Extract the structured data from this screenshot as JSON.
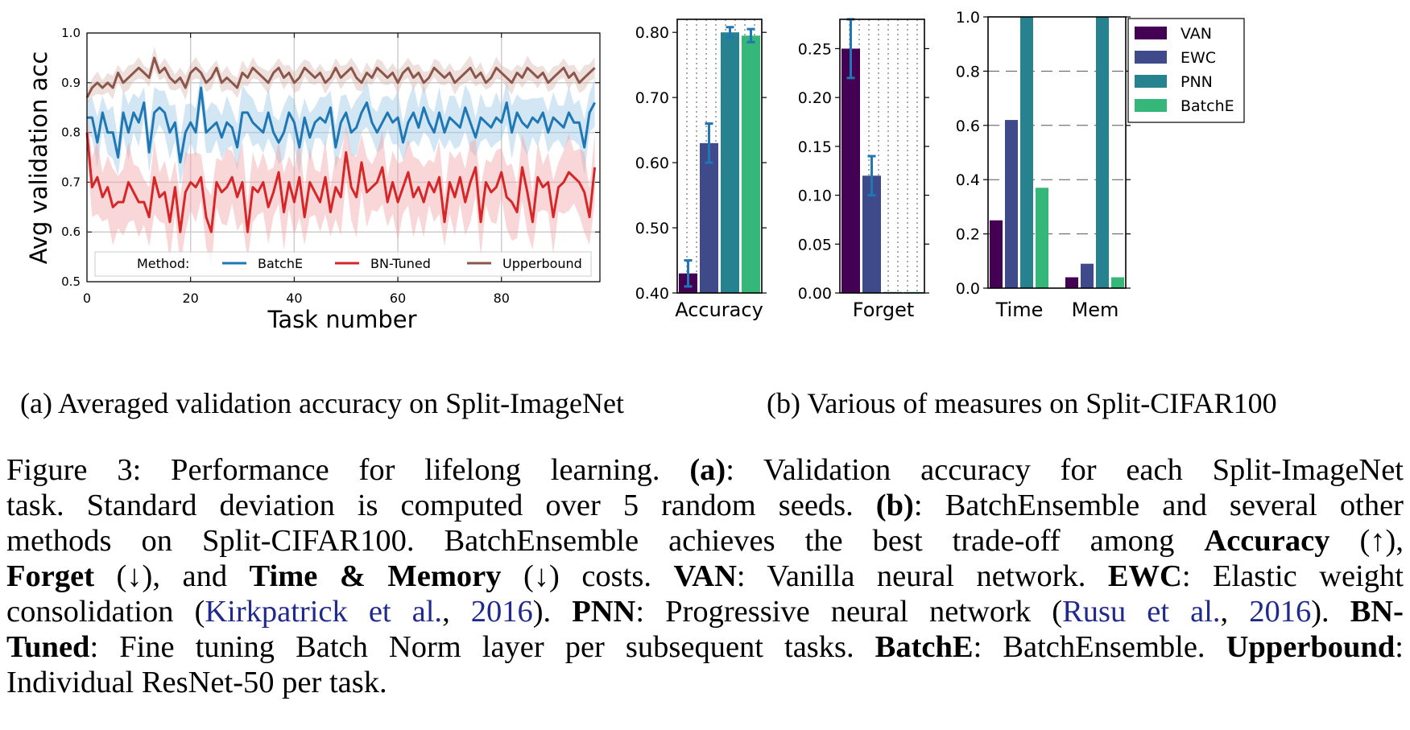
{
  "figure": {
    "sub_a_caption": "(a) Averaged validation accuracy on Split-ImageNet",
    "sub_b_caption": "(b) Various of measures on Split-CIFAR100"
  },
  "chart_data": [
    {
      "type": "line",
      "id": "a",
      "title": "",
      "xlabel": "Task number",
      "ylabel": "Avg validation acc",
      "xlim": [
        0,
        99
      ],
      "ylim": [
        0.5,
        1.0
      ],
      "xticks": [
        "0",
        "20",
        "40",
        "60",
        "80"
      ],
      "yticks": [
        "0.5",
        "0.6",
        "0.7",
        "0.8",
        "0.9",
        "1.0"
      ],
      "grid": true,
      "legend_title": "Method:",
      "legend_position": "bottom",
      "series": [
        {
          "name": "BatchE",
          "color": "#1f77b4",
          "values": [
            0.83,
            0.83,
            0.78,
            0.84,
            0.8,
            0.8,
            0.75,
            0.84,
            0.8,
            0.84,
            0.82,
            0.86,
            0.76,
            0.84,
            0.85,
            0.84,
            0.8,
            0.82,
            0.74,
            0.8,
            0.82,
            0.8,
            0.89,
            0.8,
            0.81,
            0.82,
            0.79,
            0.82,
            0.81,
            0.77,
            0.84,
            0.84,
            0.82,
            0.81,
            0.8,
            0.84,
            0.8,
            0.78,
            0.8,
            0.84,
            0.82,
            0.77,
            0.83,
            0.79,
            0.82,
            0.83,
            0.82,
            0.85,
            0.77,
            0.82,
            0.84,
            0.8,
            0.81,
            0.84,
            0.86,
            0.82,
            0.8,
            0.82,
            0.84,
            0.82,
            0.83,
            0.78,
            0.82,
            0.84,
            0.81,
            0.85,
            0.82,
            0.8,
            0.84,
            0.8,
            0.83,
            0.82,
            0.81,
            0.85,
            0.82,
            0.79,
            0.83,
            0.82,
            0.81,
            0.83,
            0.82,
            0.86,
            0.8,
            0.84,
            0.82,
            0.81,
            0.83,
            0.82,
            0.84,
            0.8,
            0.83,
            0.82,
            0.81,
            0.84,
            0.82,
            0.82,
            0.77,
            0.84,
            0.86
          ]
        },
        {
          "name": "BN-Tuned",
          "color": "#d62728",
          "values": [
            0.8,
            0.69,
            0.71,
            0.67,
            0.69,
            0.65,
            0.66,
            0.66,
            0.7,
            0.68,
            0.66,
            0.66,
            0.63,
            0.71,
            0.67,
            0.68,
            0.62,
            0.69,
            0.6,
            0.68,
            0.7,
            0.69,
            0.71,
            0.63,
            0.6,
            0.7,
            0.68,
            0.69,
            0.71,
            0.67,
            0.7,
            0.6,
            0.69,
            0.68,
            0.7,
            0.65,
            0.68,
            0.72,
            0.64,
            0.7,
            0.66,
            0.71,
            0.63,
            0.7,
            0.68,
            0.66,
            0.71,
            0.64,
            0.69,
            0.67,
            0.76,
            0.69,
            0.67,
            0.74,
            0.68,
            0.69,
            0.7,
            0.73,
            0.66,
            0.7,
            0.66,
            0.69,
            0.72,
            0.67,
            0.69,
            0.66,
            0.7,
            0.68,
            0.71,
            0.62,
            0.7,
            0.67,
            0.71,
            0.66,
            0.7,
            0.73,
            0.62,
            0.7,
            0.68,
            0.69,
            0.72,
            0.67,
            0.66,
            0.64,
            0.73,
            0.68,
            0.62,
            0.71,
            0.69,
            0.7,
            0.63,
            0.69,
            0.7,
            0.72,
            0.71,
            0.7,
            0.68,
            0.63,
            0.73
          ]
        },
        {
          "name": "Upperbound",
          "color": "#8c564b",
          "values": [
            0.87,
            0.89,
            0.9,
            0.89,
            0.9,
            0.89,
            0.92,
            0.9,
            0.91,
            0.92,
            0.93,
            0.92,
            0.91,
            0.95,
            0.92,
            0.93,
            0.91,
            0.9,
            0.91,
            0.89,
            0.92,
            0.93,
            0.92,
            0.9,
            0.91,
            0.93,
            0.9,
            0.91,
            0.9,
            0.89,
            0.92,
            0.91,
            0.93,
            0.92,
            0.91,
            0.9,
            0.92,
            0.93,
            0.91,
            0.92,
            0.9,
            0.91,
            0.93,
            0.92,
            0.91,
            0.92,
            0.9,
            0.91,
            0.93,
            0.91,
            0.92,
            0.93,
            0.91,
            0.9,
            0.92,
            0.91,
            0.93,
            0.92,
            0.91,
            0.92,
            0.9,
            0.92,
            0.93,
            0.91,
            0.92,
            0.9,
            0.91,
            0.93,
            0.92,
            0.91,
            0.92,
            0.9,
            0.91,
            0.92,
            0.93,
            0.91,
            0.92,
            0.9,
            0.91,
            0.93,
            0.92,
            0.91,
            0.9,
            0.92,
            0.91,
            0.93,
            0.92,
            0.91,
            0.92,
            0.9,
            0.91,
            0.92,
            0.93,
            0.91,
            0.92,
            0.9,
            0.91,
            0.92,
            0.93
          ]
        }
      ],
      "bands": {
        "BatchE": 0.045,
        "BN-Tuned": 0.065,
        "Upperbound": 0.02
      }
    },
    {
      "type": "bar",
      "id": "b-accuracy",
      "category_label": "Accuracy",
      "ylim": [
        0.4,
        0.82
      ],
      "yticks": [
        "0.40",
        "0.50",
        "0.60",
        "0.70",
        "0.80"
      ],
      "series": [
        {
          "name": "VAN",
          "value": 0.43,
          "err": 0.02
        },
        {
          "name": "EWC",
          "value": 0.63,
          "err": 0.03
        },
        {
          "name": "PNN",
          "value": 0.8,
          "err": 0.008
        },
        {
          "name": "BatchE",
          "value": 0.795,
          "err": 0.01
        }
      ]
    },
    {
      "type": "bar",
      "id": "b-forget",
      "category_label": "Forget",
      "ylim": [
        0.0,
        0.28
      ],
      "yticks": [
        "0.00",
        "0.05",
        "0.10",
        "0.15",
        "0.20",
        "0.25"
      ],
      "series": [
        {
          "name": "VAN",
          "value": 0.25,
          "err": 0.03
        },
        {
          "name": "EWC",
          "value": 0.12,
          "err": 0.02
        },
        {
          "name": "PNN",
          "value": 0.001,
          "err": 0
        },
        {
          "name": "BatchE",
          "value": 0.001,
          "err": 0
        }
      ]
    },
    {
      "type": "bar",
      "id": "b-cost",
      "categories": [
        "Time",
        "Mem"
      ],
      "ylim": [
        0.0,
        1.0
      ],
      "yticks": [
        "0.0",
        "0.2",
        "0.4",
        "0.6",
        "0.8",
        "1.0"
      ],
      "series": [
        {
          "name": "VAN",
          "values": [
            0.25,
            0.04
          ]
        },
        {
          "name": "EWC",
          "values": [
            0.62,
            0.09
          ]
        },
        {
          "name": "PNN",
          "values": [
            1.0,
            1.0
          ]
        },
        {
          "name": "BatchE",
          "values": [
            0.37,
            0.04
          ]
        }
      ],
      "legend_position": "top-right"
    }
  ],
  "colors": {
    "VAN": "#440154",
    "EWC": "#3e4a89",
    "PNN": "#26828e",
    "BatchE": "#35b779"
  },
  "caption": {
    "line1": [
      "Figure 3:  Performance for lifelong learning.  ",
      "(a)",
      ":  Validation accuracy for each Split-ImageNet"
    ],
    "line2": [
      "task. Standard deviation is computed over 5 random seeds. ",
      "(b)",
      ": BatchEnsemble and several other"
    ],
    "line3": [
      "methods on Split-CIFAR100.  BatchEnsemble achieves the best trade-off among ",
      "Accuracy",
      " (↑),"
    ],
    "line4": [
      "Forget",
      " (↓), and ",
      "Time & Memory",
      " (↓) costs.  ",
      "VAN",
      ": Vanilla neural network.  ",
      "EWC",
      ": Elastic weight"
    ],
    "line5": [
      "consolidation (",
      "Kirkpatrick et al.",
      ", ",
      "2016",
      "). ",
      "PNN",
      ": Progressive neural network (",
      "Rusu et al.",
      ", ",
      "2016",
      "). ",
      "BN-"
    ],
    "line6": [
      "Tuned",
      ": Fine tuning Batch Norm layer per subsequent tasks. ",
      "BatchE",
      ": BatchEnsemble. ",
      "Upperbound",
      ":"
    ],
    "line7": [
      "Individual ResNet-50 per task."
    ]
  }
}
